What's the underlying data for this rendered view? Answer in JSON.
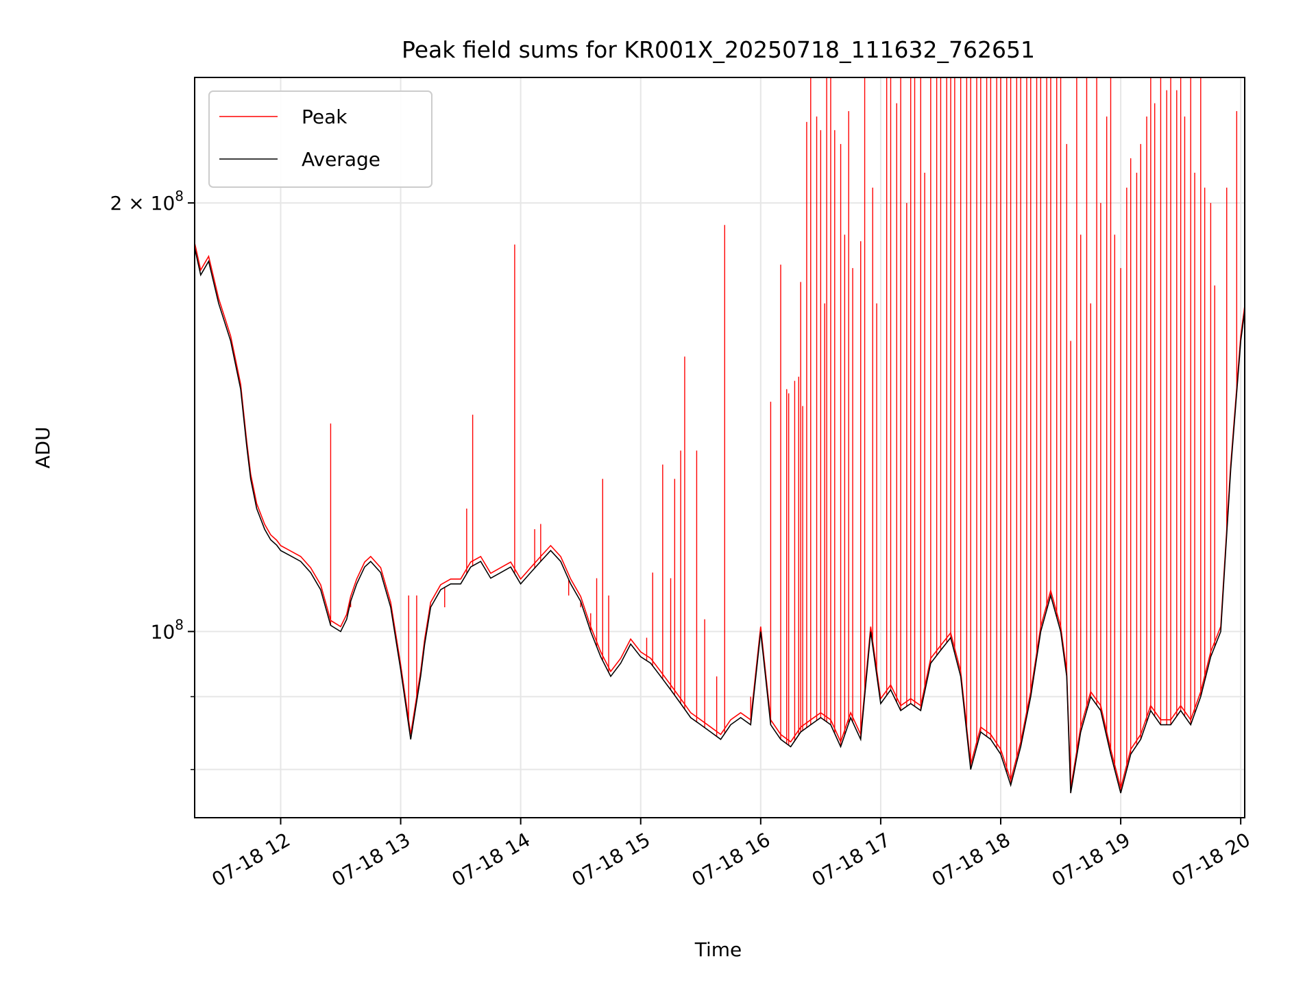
{
  "chart_data": {
    "type": "line",
    "title": "Peak field sums for KR001X_20250718_111632_762651",
    "xlabel": "Time",
    "ylabel": "ADU",
    "x_axis": {
      "kind": "time",
      "range": [
        "2025-07-18 11:17",
        "2025-07-18 20:02"
      ],
      "tick_values": [
        "2025-07-18 12:00",
        "2025-07-18 13:00",
        "2025-07-18 14:00",
        "2025-07-18 15:00",
        "2025-07-18 16:00",
        "2025-07-18 17:00",
        "2025-07-18 18:00",
        "2025-07-18 19:00",
        "2025-07-18 20:00"
      ],
      "tick_labels": [
        "07-18 12",
        "07-18 13",
        "07-18 14",
        "07-18 15",
        "07-18 16",
        "07-18 17",
        "07-18 18",
        "07-18 19",
        "07-18 20"
      ]
    },
    "y_axis": {
      "scale": "log",
      "range": [
        74000000,
        245000000
      ],
      "major_ticks": [
        {
          "value": 100000000,
          "label_base": "10",
          "label_exp": "8"
        },
        {
          "value": 200000000,
          "label_base": "2 × 10",
          "label_exp": "8"
        }
      ],
      "minor_ticks": [
        80000000,
        90000000
      ]
    },
    "grid": true,
    "legend": {
      "placement": "top-left",
      "entries": [
        "Peak",
        "Average"
      ]
    },
    "series": [
      {
        "name": "Average",
        "color": "#000000",
        "x": [
          "11:17",
          "11:20",
          "11:24",
          "11:29",
          "11:35",
          "11:40",
          "11:43",
          "11:45",
          "11:48",
          "11:52",
          "11:55",
          "11:58",
          "12:00",
          "12:05",
          "12:10",
          "12:15",
          "12:20",
          "12:25",
          "12:30",
          "12:33",
          "12:35",
          "12:38",
          "12:42",
          "12:45",
          "12:50",
          "12:55",
          "13:00",
          "13:05",
          "13:10",
          "13:12",
          "13:15",
          "13:20",
          "13:25",
          "13:30",
          "13:35",
          "13:40",
          "13:45",
          "13:50",
          "13:55",
          "14:00",
          "14:05",
          "14:10",
          "14:15",
          "14:20",
          "14:25",
          "14:30",
          "14:35",
          "14:40",
          "14:45",
          "14:50",
          "14:55",
          "15:00",
          "15:05",
          "15:10",
          "15:15",
          "15:20",
          "15:25",
          "15:30",
          "15:35",
          "15:40",
          "15:45",
          "15:50",
          "15:55",
          "16:00",
          "16:05",
          "16:10",
          "16:15",
          "16:20",
          "16:25",
          "16:30",
          "16:35",
          "16:40",
          "16:45",
          "16:50",
          "16:55",
          "17:00",
          "17:05",
          "17:10",
          "17:15",
          "17:20",
          "17:25",
          "17:30",
          "17:35",
          "17:40",
          "17:45",
          "17:50",
          "17:55",
          "18:00",
          "18:05",
          "18:10",
          "18:15",
          "18:20",
          "18:25",
          "18:30",
          "18:33",
          "18:35",
          "18:40",
          "18:45",
          "18:50",
          "18:55",
          "19:00",
          "19:05",
          "19:10",
          "19:15",
          "19:20",
          "19:25",
          "19:30",
          "19:35",
          "19:40",
          "19:45",
          "19:50",
          "19:55",
          "20:00",
          "20:02"
        ],
        "y": [
          186,
          178,
          182,
          170,
          160,
          148,
          135,
          128,
          122,
          118,
          116,
          115,
          114,
          113,
          112,
          110,
          107,
          101,
          100,
          102,
          105,
          108,
          111,
          112,
          110,
          104,
          94,
          84,
          93,
          98,
          104,
          107,
          108,
          108,
          111,
          112,
          109,
          110,
          111,
          108,
          110,
          112,
          114,
          112,
          108,
          105,
          100,
          96,
          93,
          95,
          98,
          96,
          95,
          93,
          91,
          89,
          87,
          86,
          85,
          84,
          86,
          87,
          86,
          100,
          86,
          84,
          83,
          85,
          86,
          87,
          86,
          83,
          87,
          84,
          100,
          89,
          91,
          88,
          89,
          88,
          95,
          97,
          99,
          93,
          80,
          85,
          84,
          82,
          78,
          83,
          90,
          100,
          106,
          100,
          93,
          77,
          85,
          90,
          88,
          82,
          77,
          82,
          84,
          88,
          86,
          86,
          88,
          86,
          90,
          96,
          100,
          130,
          160,
          168
        ]
      },
      {
        "name": "Peak",
        "color": "#ff0000",
        "spikes": [
          {
            "x": "12:25",
            "y": 140
          },
          {
            "x": "12:35",
            "y": 104
          },
          {
            "x": "13:04",
            "y": 106
          },
          {
            "x": "13:08",
            "y": 106
          },
          {
            "x": "13:22",
            "y": 104
          },
          {
            "x": "13:33",
            "y": 122
          },
          {
            "x": "13:36",
            "y": 142
          },
          {
            "x": "13:57",
            "y": 187
          },
          {
            "x": "14:07",
            "y": 118
          },
          {
            "x": "14:10",
            "y": 119
          },
          {
            "x": "14:24",
            "y": 106
          },
          {
            "x": "14:30",
            "y": 104
          },
          {
            "x": "14:35",
            "y": 103
          },
          {
            "x": "14:38",
            "y": 109
          },
          {
            "x": "14:41",
            "y": 128
          },
          {
            "x": "14:44",
            "y": 106
          },
          {
            "x": "15:03",
            "y": 99
          },
          {
            "x": "15:06",
            "y": 110
          },
          {
            "x": "15:11",
            "y": 131
          },
          {
            "x": "15:15",
            "y": 109
          },
          {
            "x": "15:17",
            "y": 128
          },
          {
            "x": "15:20",
            "y": 134
          },
          {
            "x": "15:22",
            "y": 156
          },
          {
            "x": "15:28",
            "y": 134
          },
          {
            "x": "15:32",
            "y": 102
          },
          {
            "x": "15:38",
            "y": 93
          },
          {
            "x": "15:42",
            "y": 193
          },
          {
            "x": "15:55",
            "y": 90
          },
          {
            "x": "16:05",
            "y": 145
          },
          {
            "x": "16:10",
            "y": 181
          },
          {
            "x": "16:13",
            "y": 148
          },
          {
            "x": "16:14",
            "y": 147
          },
          {
            "x": "16:17",
            "y": 150
          },
          {
            "x": "16:19",
            "y": 151
          },
          {
            "x": "16:20",
            "y": 176
          },
          {
            "x": "16:21",
            "y": 144
          },
          {
            "x": "16:23",
            "y": 228
          },
          {
            "x": "16:25",
            "y": 245
          },
          {
            "x": "16:28",
            "y": 230
          },
          {
            "x": "16:30",
            "y": 225
          },
          {
            "x": "16:32",
            "y": 170
          },
          {
            "x": "16:33",
            "y": 245
          },
          {
            "x": "16:35",
            "y": 245
          },
          {
            "x": "16:37",
            "y": 225
          },
          {
            "x": "16:40",
            "y": 220
          },
          {
            "x": "16:42",
            "y": 190
          },
          {
            "x": "16:44",
            "y": 232
          },
          {
            "x": "16:46",
            "y": 180
          },
          {
            "x": "16:50",
            "y": 188
          },
          {
            "x": "16:52",
            "y": 245
          },
          {
            "x": "16:56",
            "y": 205
          },
          {
            "x": "16:58",
            "y": 170
          },
          {
            "x": "17:03",
            "y": 245
          },
          {
            "x": "17:05",
            "y": 245
          },
          {
            "x": "17:08",
            "y": 235
          },
          {
            "x": "17:10",
            "y": 245
          },
          {
            "x": "17:13",
            "y": 200
          },
          {
            "x": "17:15",
            "y": 245
          },
          {
            "x": "17:17",
            "y": 245
          },
          {
            "x": "17:20",
            "y": 245
          },
          {
            "x": "17:22",
            "y": 210
          },
          {
            "x": "17:25",
            "y": 245
          },
          {
            "x": "17:28",
            "y": 245
          },
          {
            "x": "17:30",
            "y": 245
          },
          {
            "x": "17:33",
            "y": 245
          },
          {
            "x": "17:35",
            "y": 245
          },
          {
            "x": "17:37",
            "y": 245
          },
          {
            "x": "17:40",
            "y": 245
          },
          {
            "x": "17:43",
            "y": 245
          },
          {
            "x": "17:45",
            "y": 245
          },
          {
            "x": "17:48",
            "y": 245
          },
          {
            "x": "17:50",
            "y": 245
          },
          {
            "x": "17:53",
            "y": 245
          },
          {
            "x": "17:55",
            "y": 245
          },
          {
            "x": "17:58",
            "y": 245
          },
          {
            "x": "18:00",
            "y": 245
          },
          {
            "x": "18:03",
            "y": 245
          },
          {
            "x": "18:05",
            "y": 245
          },
          {
            "x": "18:08",
            "y": 245
          },
          {
            "x": "18:10",
            "y": 245
          },
          {
            "x": "18:13",
            "y": 245
          },
          {
            "x": "18:15",
            "y": 245
          },
          {
            "x": "18:18",
            "y": 245
          },
          {
            "x": "18:20",
            "y": 245
          },
          {
            "x": "18:23",
            "y": 245
          },
          {
            "x": "18:25",
            "y": 245
          },
          {
            "x": "18:28",
            "y": 245
          },
          {
            "x": "18:30",
            "y": 245
          },
          {
            "x": "18:33",
            "y": 220
          },
          {
            "x": "18:35",
            "y": 160
          },
          {
            "x": "18:38",
            "y": 245
          },
          {
            "x": "18:40",
            "y": 190
          },
          {
            "x": "18:43",
            "y": 245
          },
          {
            "x": "18:45",
            "y": 170
          },
          {
            "x": "18:48",
            "y": 245
          },
          {
            "x": "18:50",
            "y": 200
          },
          {
            "x": "18:53",
            "y": 230
          },
          {
            "x": "18:55",
            "y": 245
          },
          {
            "x": "18:57",
            "y": 190
          },
          {
            "x": "19:00",
            "y": 180
          },
          {
            "x": "19:03",
            "y": 205
          },
          {
            "x": "19:05",
            "y": 215
          },
          {
            "x": "19:08",
            "y": 210
          },
          {
            "x": "19:10",
            "y": 220
          },
          {
            "x": "19:13",
            "y": 230
          },
          {
            "x": "19:15",
            "y": 245
          },
          {
            "x": "19:17",
            "y": 235
          },
          {
            "x": "19:20",
            "y": 245
          },
          {
            "x": "19:23",
            "y": 240
          },
          {
            "x": "19:25",
            "y": 245
          },
          {
            "x": "19:28",
            "y": 240
          },
          {
            "x": "19:30",
            "y": 245
          },
          {
            "x": "19:32",
            "y": 230
          },
          {
            "x": "19:35",
            "y": 245
          },
          {
            "x": "19:37",
            "y": 210
          },
          {
            "x": "19:40",
            "y": 245
          },
          {
            "x": "19:42",
            "y": 205
          },
          {
            "x": "19:45",
            "y": 200
          },
          {
            "x": "19:47",
            "y": 175
          },
          {
            "x": "19:53",
            "y": 205
          },
          {
            "x": "19:58",
            "y": 232
          }
        ]
      }
    ]
  }
}
